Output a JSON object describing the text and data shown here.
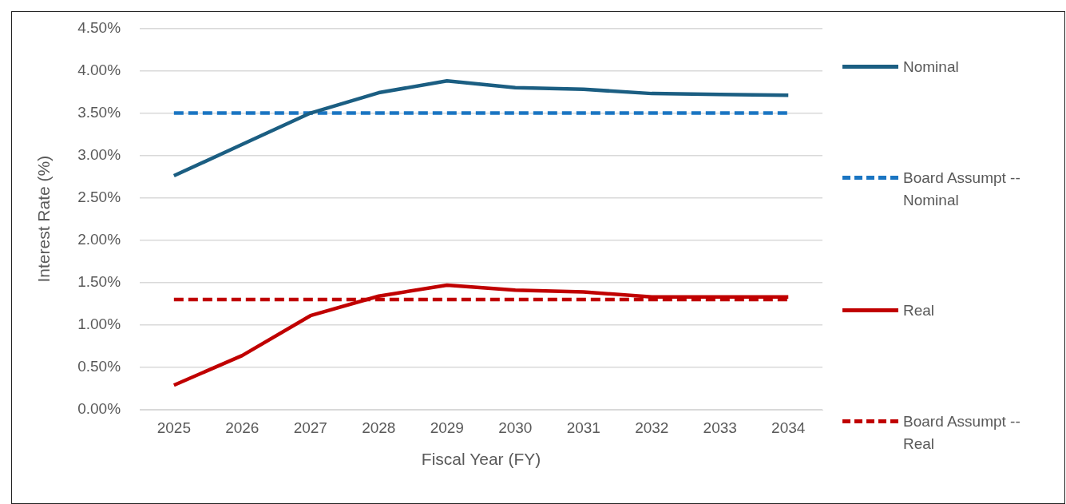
{
  "chart_data": {
    "type": "line",
    "xlabel": "Fiscal Year (FY)",
    "ylabel": "Interest Rate (%)",
    "categories": [
      "2025",
      "2026",
      "2027",
      "2028",
      "2029",
      "2030",
      "2031",
      "2032",
      "2033",
      "2034"
    ],
    "series": [
      {
        "name": "Nominal",
        "color": "#1b5e82",
        "line_style": "solid",
        "values": [
          2.76,
          3.13,
          3.5,
          3.74,
          3.88,
          3.8,
          3.78,
          3.73,
          3.72,
          3.71
        ]
      },
      {
        "name": "Board Assumpt -- Nominal",
        "color": "#1a75c2",
        "line_style": "dashed",
        "values": [
          3.5,
          3.5,
          3.5,
          3.5,
          3.5,
          3.5,
          3.5,
          3.5,
          3.5,
          3.5
        ]
      },
      {
        "name": "Real",
        "color": "#c00000",
        "line_style": "solid",
        "values": [
          0.29,
          0.64,
          1.11,
          1.34,
          1.47,
          1.41,
          1.39,
          1.33,
          1.33,
          1.33
        ]
      },
      {
        "name": "Board Assumpt -- Real",
        "color": "#c00000",
        "line_style": "dashed",
        "values": [
          1.3,
          1.3,
          1.3,
          1.3,
          1.3,
          1.3,
          1.3,
          1.3,
          1.3,
          1.3
        ]
      }
    ],
    "ylim": [
      0,
      4.5
    ],
    "yticks": [
      {
        "value": 0,
        "label": "0.00%"
      },
      {
        "value": 0.5,
        "label": "0.50%"
      },
      {
        "value": 1,
        "label": "1.00%"
      },
      {
        "value": 1.5,
        "label": "1.50%"
      },
      {
        "value": 2,
        "label": "2.00%"
      },
      {
        "value": 2.5,
        "label": "2.50%"
      },
      {
        "value": 3,
        "label": "3.00%"
      },
      {
        "value": 3.5,
        "label": "3.50%"
      },
      {
        "value": 4,
        "label": "4.00%"
      },
      {
        "value": 4.5,
        "label": "4.50%"
      }
    ],
    "grid": "y",
    "legend": "right",
    "marker": "none"
  }
}
